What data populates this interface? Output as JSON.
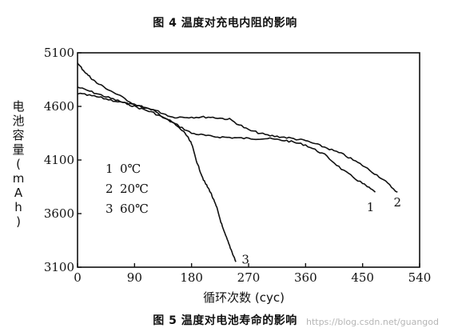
{
  "captions": {
    "top": "图 4 温度对充电内阻的影响",
    "bottom": "图 5 温度对电池寿命的影响"
  },
  "watermark": "https://blog.csdn.net/guangod",
  "chart_data": {
    "type": "line",
    "xlabel": "循环次数 (cyc)",
    "ylabel_chars": [
      "电",
      "池",
      "容",
      "量",
      "(",
      "m",
      "A",
      "h",
      ")"
    ],
    "xlim": [
      0,
      540
    ],
    "ylim": [
      3100,
      5100
    ],
    "xticks": [
      0,
      90,
      180,
      270,
      360,
      450,
      540
    ],
    "yticks": [
      3100,
      3600,
      4100,
      4600,
      5100
    ],
    "grid": false,
    "legend": {
      "position": "center-left",
      "entries": [
        {
          "num": "1",
          "label": "0℃"
        },
        {
          "num": "2",
          "label": "20℃"
        },
        {
          "num": "3",
          "label": "60℃"
        }
      ]
    },
    "series": [
      {
        "id": "1",
        "end_label": "1",
        "x": [
          0,
          30,
          60,
          90,
          120,
          150,
          180,
          210,
          240,
          270,
          300,
          330,
          360,
          390,
          420,
          450,
          470
        ],
        "y": [
          4780,
          4720,
          4660,
          4600,
          4540,
          4450,
          4350,
          4320,
          4310,
          4300,
          4300,
          4280,
          4240,
          4150,
          4000,
          3880,
          3800
        ]
      },
      {
        "id": "2",
        "end_label": "2",
        "x": [
          0,
          30,
          60,
          90,
          120,
          150,
          180,
          210,
          240,
          270,
          300,
          330,
          360,
          390,
          420,
          450,
          480,
          505
        ],
        "y": [
          4720,
          4690,
          4650,
          4610,
          4570,
          4500,
          4500,
          4500,
          4480,
          4380,
          4330,
          4310,
          4280,
          4220,
          4150,
          4050,
          3930,
          3800
        ]
      },
      {
        "id": "3",
        "end_label": "3",
        "x": [
          0,
          15,
          30,
          60,
          90,
          120,
          150,
          170,
          180,
          190,
          200,
          210,
          220,
          230,
          240,
          250
        ],
        "y": [
          5000,
          4900,
          4820,
          4720,
          4620,
          4560,
          4450,
          4350,
          4250,
          4050,
          3900,
          3800,
          3650,
          3450,
          3300,
          3150
        ]
      }
    ]
  }
}
